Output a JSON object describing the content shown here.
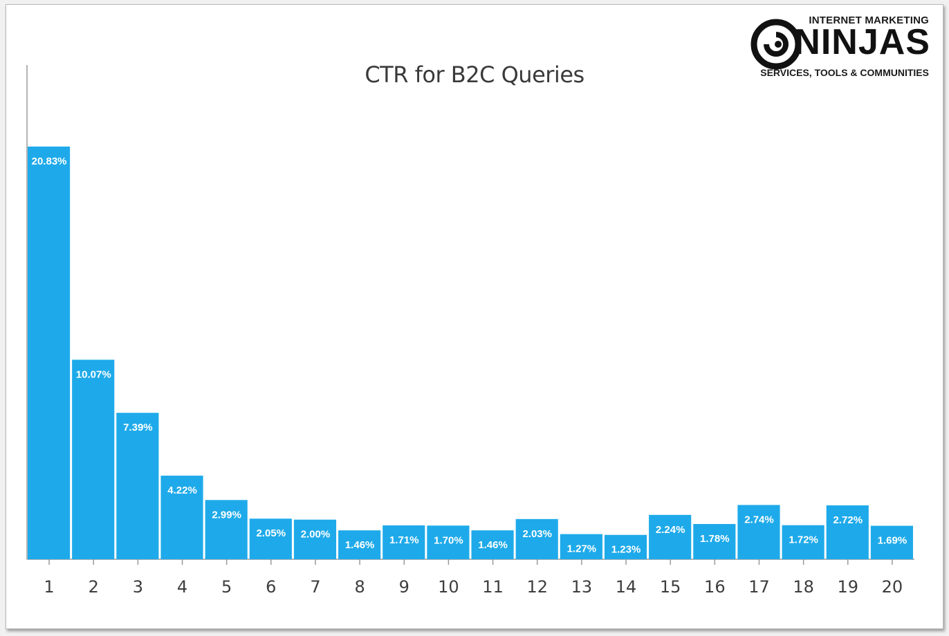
{
  "logo": {
    "line1": "INTERNET MARKETING",
    "line2": "NINJAS",
    "line3": "SERVICES, TOOLS & COMMUNITIES",
    "icon": "swirl-logo-icon"
  },
  "colors": {
    "bar": "#1eaaea",
    "axis": "#9a9a9a",
    "tick_text": "#3d3d3d",
    "title": "#3a3a3a"
  },
  "chart_data": {
    "type": "bar",
    "title": "CTR for B2C Queries",
    "xlabel": "",
    "ylabel": "",
    "categories": [
      "1",
      "2",
      "3",
      "4",
      "5",
      "6",
      "7",
      "8",
      "9",
      "10",
      "11",
      "12",
      "13",
      "14",
      "15",
      "16",
      "17",
      "18",
      "19",
      "20"
    ],
    "values": [
      20.83,
      10.07,
      7.39,
      4.22,
      2.99,
      2.05,
      2.0,
      1.46,
      1.71,
      1.7,
      1.46,
      2.03,
      1.27,
      1.23,
      2.24,
      1.78,
      2.74,
      1.72,
      2.72,
      1.69
    ],
    "data_labels": [
      "20.83%",
      "10.07%",
      "7.39%",
      "4.22%",
      "2.99%",
      "2.05%",
      "2.00%",
      "1.46%",
      "1.71%",
      "1.70%",
      "1.46%",
      "2.03%",
      "1.27%",
      "1.23%",
      "2.24%",
      "1.78%",
      "2.74%",
      "1.72%",
      "2.72%",
      "1.69%"
    ],
    "ylim": [
      0,
      25
    ],
    "grid": false,
    "legend": "none"
  }
}
